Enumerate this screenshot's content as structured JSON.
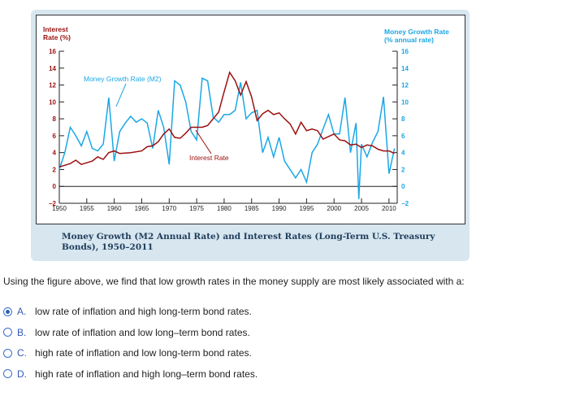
{
  "chart_data": {
    "type": "line",
    "caption": "Money Growth (M2 Annual Rate) and Interest Rates (Long-Term U.S. Treasury Bonds), 1950–2011",
    "left_axis_label": [
      "Interest",
      "Rate (%)"
    ],
    "right_axis_label": [
      "Money Growth Rate",
      "(% annual rate)"
    ],
    "xlim": [
      1950,
      2011.5
    ],
    "ylim": [
      -2,
      16
    ],
    "yticks": [
      -2,
      0,
      2,
      4,
      6,
      8,
      10,
      12,
      14,
      16
    ],
    "xticks": [
      1950,
      1955,
      1960,
      1965,
      1970,
      1975,
      1980,
      1985,
      1990,
      1995,
      2000,
      2005,
      2010
    ],
    "series": [
      {
        "name": "Money Growth Rate (M2)",
        "color": "#1aa7e6",
        "x": [
          1950,
          1951,
          1952,
          1953,
          1954,
          1955,
          1956,
          1957,
          1958,
          1959,
          1960,
          1961,
          1962,
          1963,
          1964,
          1965,
          1966,
          1967,
          1968,
          1969,
          1970,
          1971,
          1972,
          1973,
          1974,
          1975,
          1976,
          1977,
          1978,
          1979,
          1980,
          1981,
          1982,
          1983,
          1984,
          1985,
          1986,
          1987,
          1988,
          1989,
          1990,
          1991,
          1992,
          1993,
          1994,
          1995,
          1996,
          1997,
          1998,
          1999,
          2000,
          2001,
          2002,
          2003,
          2004,
          2004.5,
          2005,
          2006,
          2007,
          2008,
          2009,
          2010,
          2011
        ],
        "y": [
          2.0,
          4.0,
          7.0,
          6.0,
          4.8,
          6.5,
          4.5,
          4.2,
          5.0,
          10.5,
          3.0,
          6.5,
          7.5,
          8.3,
          7.6,
          8.0,
          7.5,
          4.5,
          9.0,
          7.0,
          2.6,
          12.5,
          12.0,
          10.0,
          6.5,
          5.5,
          12.8,
          12.5,
          8.2,
          7.6,
          8.5,
          8.5,
          9.0,
          12.3,
          8.0,
          8.7,
          9.0,
          4.0,
          5.8,
          3.5,
          5.8,
          3.0,
          2.0,
          1.0,
          2.0,
          0.5,
          4.0,
          5.0,
          6.8,
          8.5,
          6.2,
          6.2,
          10.5,
          4.0,
          7.5,
          -1.5,
          5.0,
          3.5,
          5.2,
          6.5,
          10.6,
          1.5,
          4.5
        ]
      },
      {
        "name": "Interest Rate",
        "color": "#9b1010",
        "x": [
          1950,
          1952,
          1953,
          1954,
          1956,
          1957,
          1958,
          1959,
          1960,
          1961,
          1963,
          1965,
          1966,
          1967,
          1968,
          1969,
          1970,
          1971,
          1972,
          1973,
          1974,
          1975,
          1976,
          1977,
          1978,
          1979,
          1980,
          1981,
          1982,
          1983,
          1984,
          1985,
          1986,
          1987,
          1988,
          1989,
          1990,
          1991,
          1992,
          1993,
          1994,
          1995,
          1996,
          1997,
          1998,
          1999,
          2000,
          2001,
          2002,
          2003,
          2004,
          2005,
          2006,
          2007,
          2008,
          2009,
          2010,
          2011
        ],
        "y": [
          2.3,
          2.7,
          3.1,
          2.6,
          3.0,
          3.5,
          3.2,
          4.0,
          4.2,
          3.9,
          4.0,
          4.2,
          4.7,
          4.8,
          5.3,
          6.2,
          6.8,
          5.8,
          5.7,
          6.3,
          7.0,
          7.0,
          7.0,
          7.2,
          8.0,
          8.8,
          11.2,
          13.5,
          12.5,
          10.8,
          12.4,
          10.6,
          7.8,
          8.6,
          9.0,
          8.5,
          8.7,
          8.0,
          7.4,
          6.2,
          7.6,
          6.6,
          6.8,
          6.6,
          5.6,
          5.9,
          6.2,
          5.5,
          5.4,
          4.9,
          5.0,
          4.6,
          4.9,
          4.8,
          4.4,
          4.2,
          4.2,
          3.9
        ]
      }
    ]
  },
  "question": "Using the figure above, we find that low growth rates in the money supply are most likely associated with a:",
  "options": [
    {
      "letter": "A.",
      "text": "low rate of inflation and high long-term bond rates.",
      "selected": true
    },
    {
      "letter": "B.",
      "text": "low rate of inflation and low long–term bond rates.",
      "selected": false
    },
    {
      "letter": "C.",
      "text": "high rate of inflation and low long-term bond rates.",
      "selected": false
    },
    {
      "letter": "D.",
      "text": "high rate of inflation and high long–term bond rates.",
      "selected": false
    }
  ]
}
